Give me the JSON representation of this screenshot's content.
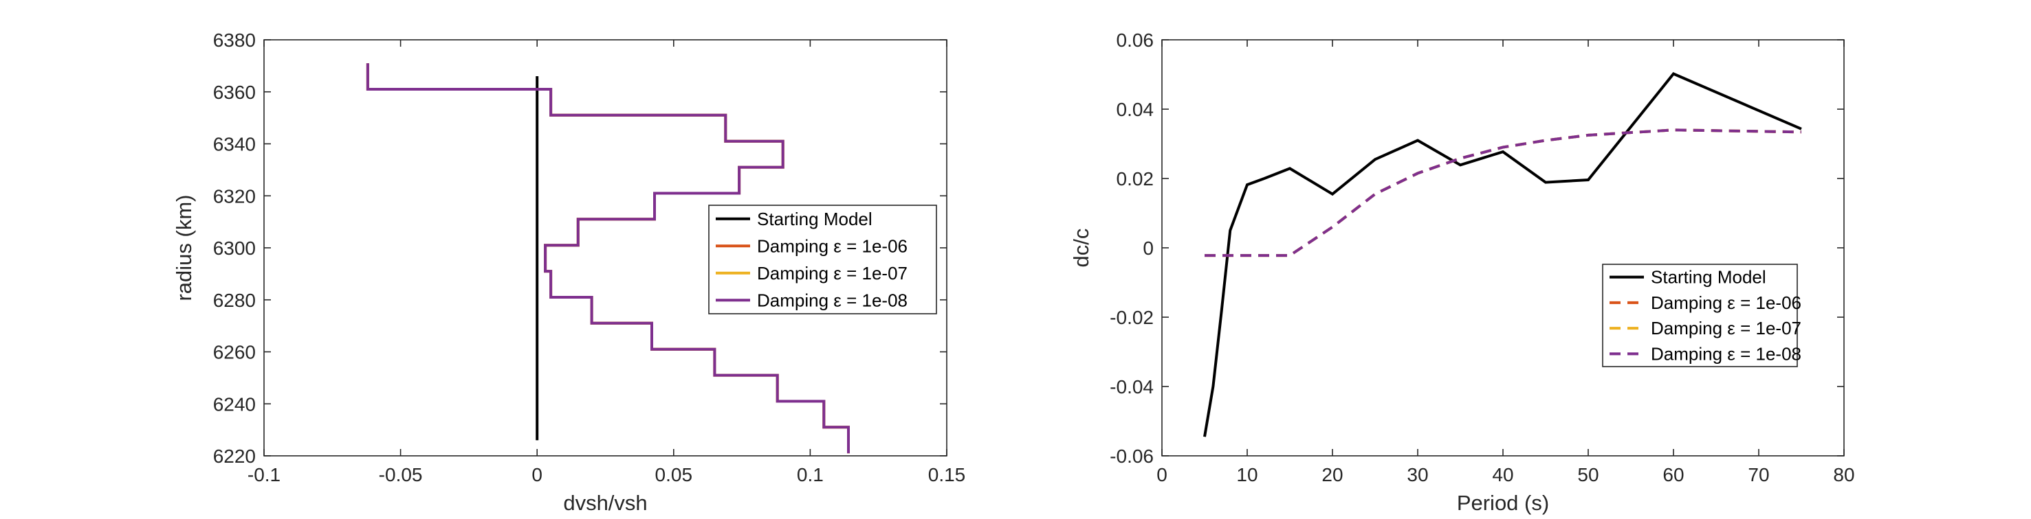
{
  "chart_data": [
    {
      "type": "line",
      "xlabel": "dvsh/vsh",
      "ylabel": "radius (km)",
      "xlim": [
        -0.1,
        0.15
      ],
      "ylim": [
        6220,
        6380
      ],
      "xticks": [
        "-0.1",
        "-0.05",
        "0",
        "0.05",
        "0.1",
        "0.15"
      ],
      "yticks": [
        "6220",
        "6240",
        "6260",
        "6280",
        "6300",
        "6320",
        "6340",
        "6360",
        "6380"
      ],
      "grid": false,
      "legend_position": "center-right",
      "legend_order": [
        0,
        1,
        2,
        3
      ],
      "series": [
        {
          "name": "Starting Model",
          "color": "#000000",
          "dash": "solid",
          "x": [
            0,
            0
          ],
          "y": [
            6226,
            6366
          ]
        },
        {
          "name": "Damping ε = 1e-06",
          "color": "#D95319",
          "dash": "solid",
          "x": [
            -0.062,
            -0.062,
            0.005,
            0.005,
            0.069,
            0.069,
            0.09,
            0.09,
            0.074,
            0.074,
            0.043,
            0.043,
            0.015,
            0.015,
            0.003,
            0.003,
            0.005,
            0.005,
            0.02,
            0.02,
            0.042,
            0.042,
            0.065,
            0.065,
            0.088,
            0.088,
            0.105,
            0.105,
            0.114,
            0.114
          ],
          "y": [
            6371,
            6361,
            6361,
            6351,
            6351,
            6341,
            6341,
            6331,
            6331,
            6321,
            6321,
            6311,
            6311,
            6301,
            6301,
            6291,
            6291,
            6281,
            6281,
            6271,
            6271,
            6261,
            6261,
            6251,
            6251,
            6241,
            6241,
            6231,
            6231,
            6221
          ]
        },
        {
          "name": "Damping ε = 1e-07",
          "color": "#EDB120",
          "dash": "solid",
          "x": [
            -0.062,
            -0.062,
            0.005,
            0.005,
            0.069,
            0.069,
            0.09,
            0.09,
            0.074,
            0.074,
            0.043,
            0.043,
            0.015,
            0.015,
            0.003,
            0.003,
            0.005,
            0.005,
            0.02,
            0.02,
            0.042,
            0.042,
            0.065,
            0.065,
            0.088,
            0.088,
            0.105,
            0.105,
            0.114,
            0.114
          ],
          "y": [
            6371,
            6361,
            6361,
            6351,
            6351,
            6341,
            6341,
            6331,
            6331,
            6321,
            6321,
            6311,
            6311,
            6301,
            6301,
            6291,
            6291,
            6281,
            6281,
            6271,
            6271,
            6261,
            6261,
            6251,
            6251,
            6241,
            6241,
            6231,
            6231,
            6221
          ]
        },
        {
          "name": "Damping ε = 1e-08",
          "color": "#7E2F8E",
          "dash": "solid",
          "x": [
            -0.062,
            -0.062,
            0.005,
            0.005,
            0.069,
            0.069,
            0.09,
            0.09,
            0.074,
            0.074,
            0.043,
            0.043,
            0.015,
            0.015,
            0.003,
            0.003,
            0.005,
            0.005,
            0.02,
            0.02,
            0.042,
            0.042,
            0.065,
            0.065,
            0.088,
            0.088,
            0.105,
            0.105,
            0.114,
            0.114
          ],
          "y": [
            6371,
            6361,
            6361,
            6351,
            6351,
            6341,
            6341,
            6331,
            6331,
            6321,
            6321,
            6311,
            6311,
            6301,
            6301,
            6291,
            6291,
            6281,
            6281,
            6271,
            6271,
            6261,
            6261,
            6251,
            6251,
            6241,
            6241,
            6231,
            6231,
            6221
          ]
        }
      ]
    },
    {
      "type": "line",
      "xlabel": "Period (s)",
      "ylabel": "dc/c",
      "xlim": [
        0,
        80
      ],
      "ylim": [
        -0.06,
        0.06
      ],
      "xticks": [
        "0",
        "10",
        "20",
        "30",
        "40",
        "50",
        "60",
        "70",
        "80"
      ],
      "yticks": [
        "-0.06",
        "-0.04",
        "-0.02",
        "0",
        "0.02",
        "0.04",
        "0.06"
      ],
      "grid": false,
      "legend_position": "bottom-right",
      "legend_order": [
        0,
        1,
        2,
        3
      ],
      "series": [
        {
          "name": "Starting Model",
          "color": "#000000",
          "dash": "solid",
          "x": [
            5,
            6,
            7,
            8,
            10,
            12,
            15,
            20,
            25,
            30,
            35,
            40,
            45,
            50,
            60,
            75
          ],
          "y": [
            -0.0545,
            -0.04,
            -0.018,
            0.005,
            0.0182,
            0.02,
            0.0229,
            0.0155,
            0.0255,
            0.031,
            0.0239,
            0.0277,
            0.0189,
            0.0196,
            0.0502,
            0.0343
          ]
        },
        {
          "name": "Damping ε = 1e-06",
          "color": "#D95319",
          "dash": "dashed",
          "x": [
            5,
            6,
            7,
            8,
            10,
            12,
            15,
            20,
            25,
            30,
            35,
            40,
            45,
            50,
            60,
            75
          ],
          "y": [
            -0.0022,
            -0.0022,
            -0.0022,
            -0.0022,
            -0.0022,
            -0.0022,
            -0.0022,
            0.006,
            0.0155,
            0.0215,
            0.0258,
            0.029,
            0.031,
            0.0325,
            0.034,
            0.0334
          ]
        },
        {
          "name": "Damping ε = 1e-07",
          "color": "#EDB120",
          "dash": "dashed",
          "x": [
            5,
            6,
            7,
            8,
            10,
            12,
            15,
            20,
            25,
            30,
            35,
            40,
            45,
            50,
            60,
            75
          ],
          "y": [
            -0.0022,
            -0.0022,
            -0.0022,
            -0.0022,
            -0.0022,
            -0.0022,
            -0.0022,
            0.006,
            0.0155,
            0.0215,
            0.0258,
            0.029,
            0.031,
            0.0325,
            0.034,
            0.0334
          ]
        },
        {
          "name": "Damping ε = 1e-08",
          "color": "#7E2F8E",
          "dash": "dashed",
          "x": [
            5,
            6,
            7,
            8,
            10,
            12,
            15,
            20,
            25,
            30,
            35,
            40,
            45,
            50,
            60,
            75
          ],
          "y": [
            -0.0022,
            -0.0022,
            -0.0022,
            -0.0022,
            -0.0022,
            -0.0022,
            -0.0022,
            0.006,
            0.0155,
            0.0215,
            0.0258,
            0.029,
            0.031,
            0.0325,
            0.034,
            0.0334
          ]
        }
      ]
    }
  ]
}
